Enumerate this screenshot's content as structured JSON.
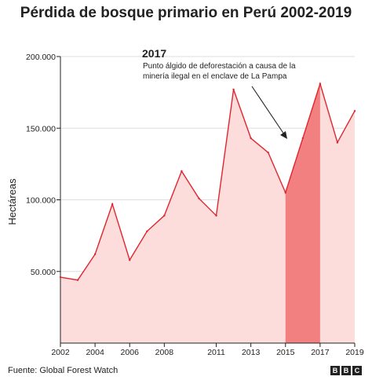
{
  "title": "Pérdida de bosque primario en Perú 2002-2019",
  "source": "Fuente: Global Forest Watch",
  "logo": [
    "B",
    "B",
    "C"
  ],
  "chart_data": {
    "type": "area",
    "title": "Pérdida de bosque primario en Perú 2002-2019",
    "ylabel": "Hectáreas",
    "xlabel": "",
    "x": [
      2002,
      2003,
      2004,
      2005,
      2006,
      2007,
      2008,
      2009,
      2010,
      2011,
      2012,
      2013,
      2014,
      2015,
      2016,
      2017,
      2018,
      2019
    ],
    "values": [
      46000,
      44000,
      62000,
      97000,
      58000,
      78000,
      89000,
      120000,
      101000,
      89000,
      177000,
      143000,
      133000,
      105000,
      143000,
      181000,
      140000,
      162000
    ],
    "xticks": [
      2002,
      2004,
      2006,
      2008,
      2011,
      2013,
      2015,
      2017,
      2019
    ],
    "xtick_labels": [
      "2002",
      "2004",
      "2006",
      "2008",
      "2011",
      "2013",
      "2015",
      "2017",
      "2019"
    ],
    "yticks": [
      50000,
      100000,
      150000,
      200000
    ],
    "ytick_labels": [
      "50.000",
      "100.000",
      "150.000",
      "200.000"
    ],
    "ylim": [
      0,
      200000
    ],
    "xlim": [
      2002,
      2019
    ],
    "highlight": {
      "from": 2015,
      "to": 2017
    },
    "annotation": {
      "year_label": "2017",
      "text_line1": "Punto álgido de deforestación a causa de la",
      "text_line2": "minería ilegal en el enclave de La Pampa"
    },
    "colors": {
      "fill": "#fddcdc",
      "line": "#e0252d",
      "highlight": "#f28080",
      "grid": "#dddddd",
      "axis": "#222222"
    }
  }
}
